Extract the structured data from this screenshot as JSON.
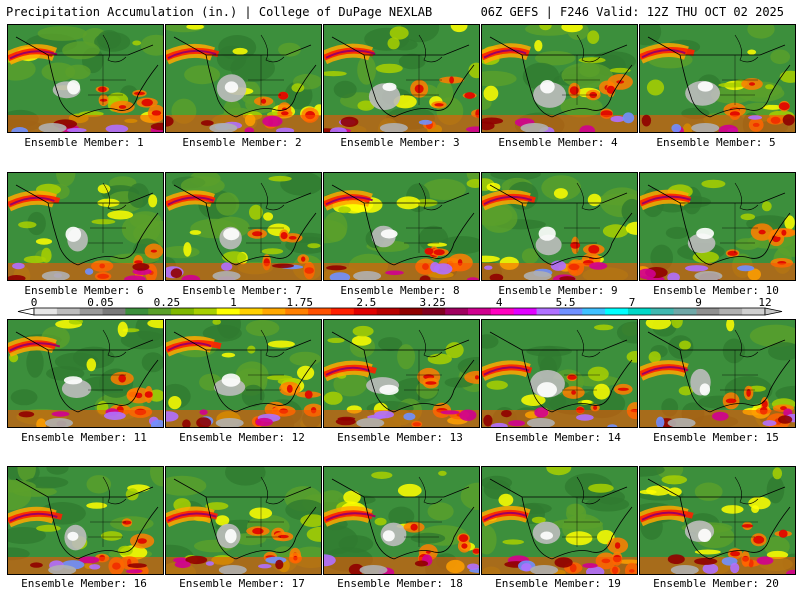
{
  "header": {
    "title_left": "Precipitation Accumulation (in.) | College of DuPage NEXLAB",
    "title_right": "06Z GEFS | F246 Valid: 12Z THU OCT 02 2025"
  },
  "members": [
    {
      "label": "Ensemble Member: 1"
    },
    {
      "label": "Ensemble Member: 2"
    },
    {
      "label": "Ensemble Member: 3"
    },
    {
      "label": "Ensemble Member: 4"
    },
    {
      "label": "Ensemble Member: 5"
    },
    {
      "label": "Ensemble Member: 6"
    },
    {
      "label": "Ensemble Member: 7"
    },
    {
      "label": "Ensemble Member: 8"
    },
    {
      "label": "Ensemble Member: 9"
    },
    {
      "label": "Ensemble Member: 10"
    },
    {
      "label": "Ensemble Member: 11"
    },
    {
      "label": "Ensemble Member: 12"
    },
    {
      "label": "Ensemble Member: 13"
    },
    {
      "label": "Ensemble Member: 14"
    },
    {
      "label": "Ensemble Member: 15"
    },
    {
      "label": "Ensemble Member: 16"
    },
    {
      "label": "Ensemble Member: 17"
    },
    {
      "label": "Ensemble Member: 18"
    },
    {
      "label": "Ensemble Member: 19"
    },
    {
      "label": "Ensemble Member: 20"
    }
  ],
  "legend": {
    "ticks": [
      "0",
      "0.05",
      "0.25",
      "1",
      "1.75",
      "2.5",
      "3.25",
      "4",
      "5.5",
      "7",
      "9",
      "12"
    ],
    "colors": [
      "#e6e6e6",
      "#bdbdbd",
      "#9a9a9a",
      "#7a7a7a",
      "#3c8f3c",
      "#5aa02a",
      "#7fb800",
      "#a8d000",
      "#ffff00",
      "#ffd000",
      "#ffa800",
      "#ff7f00",
      "#ff5000",
      "#ff2000",
      "#e00000",
      "#b80000",
      "#900000",
      "#800020",
      "#a00060",
      "#d00090",
      "#ff00c0",
      "#e000ff",
      "#b070ff",
      "#7090ff",
      "#40c0ff",
      "#00ffff",
      "#00d8c8",
      "#40b8b0",
      "#70a8a8",
      "#909090",
      "#b0b0b0",
      "#d0d0d0"
    ]
  }
}
